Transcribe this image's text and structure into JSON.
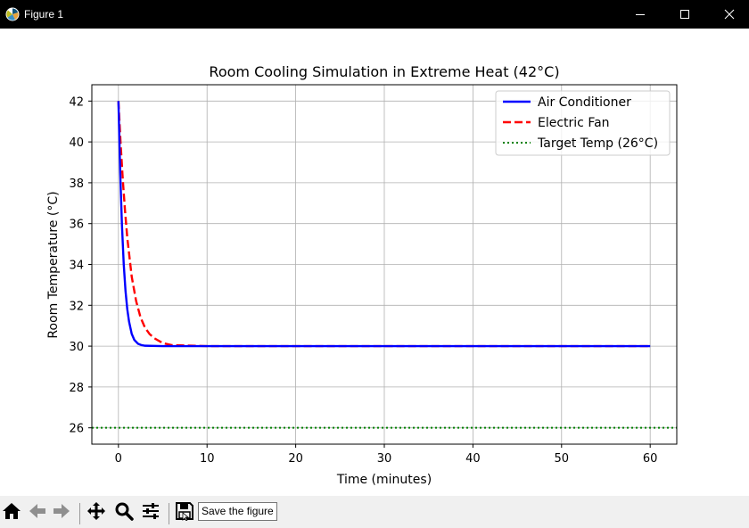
{
  "window": {
    "title": "Figure 1",
    "icon": "matplotlib-logo-icon",
    "controls": [
      "minimize-icon",
      "maximize-icon",
      "close-icon"
    ]
  },
  "toolbar": {
    "buttons": [
      "home-icon",
      "back-arrow-icon",
      "forward-arrow-icon",
      "pan-icon",
      "zoom-icon",
      "configure-subplots-icon",
      "save-icon"
    ],
    "tooltip": "Save the figure"
  },
  "chart_data": {
    "type": "line",
    "title": "Room Cooling Simulation in Extreme Heat (42°C)",
    "xlabel": "Time (minutes)",
    "ylabel": "Room Temperature (°C)",
    "xlim": [
      -3,
      63
    ],
    "ylim": [
      25.2,
      42.8
    ],
    "xticks": [
      0,
      10,
      20,
      30,
      40,
      50,
      60
    ],
    "yticks": [
      26,
      28,
      30,
      32,
      34,
      36,
      38,
      40,
      42
    ],
    "grid": true,
    "legend_position": "upper right",
    "series": [
      {
        "name": "Air Conditioner",
        "color": "#0000ff",
        "style": "solid",
        "x": [
          0,
          0.2,
          0.4,
          0.6,
          0.8,
          1.0,
          1.2,
          1.5,
          1.8,
          2.2,
          2.6,
          3,
          5,
          10,
          20,
          30,
          40,
          50,
          60
        ],
        "y": [
          42,
          38.5,
          35.9,
          34.0,
          32.7,
          31.8,
          31.2,
          30.6,
          30.3,
          30.12,
          30.05,
          30.02,
          30.0,
          30.0,
          30.0,
          30.0,
          30.0,
          30.0,
          30.0
        ]
      },
      {
        "name": "Electric Fan",
        "color": "#ff0000",
        "style": "dashed",
        "x": [
          0,
          0.25,
          0.5,
          0.75,
          1.0,
          1.5,
          2.0,
          2.5,
          3.0,
          3.5,
          4.0,
          5.0,
          6.0,
          10,
          20,
          30,
          40,
          50,
          60
        ],
        "y": [
          42,
          39.9,
          38.1,
          36.6,
          35.3,
          33.4,
          32.2,
          31.4,
          30.9,
          30.6,
          30.4,
          30.15,
          30.05,
          30.0,
          30.0,
          30.0,
          30.0,
          30.0,
          30.0
        ]
      },
      {
        "name": "Target Temp (26°C)",
        "color": "#008000",
        "style": "dotted",
        "x": [
          -3,
          63
        ],
        "y": [
          26,
          26
        ]
      }
    ]
  }
}
